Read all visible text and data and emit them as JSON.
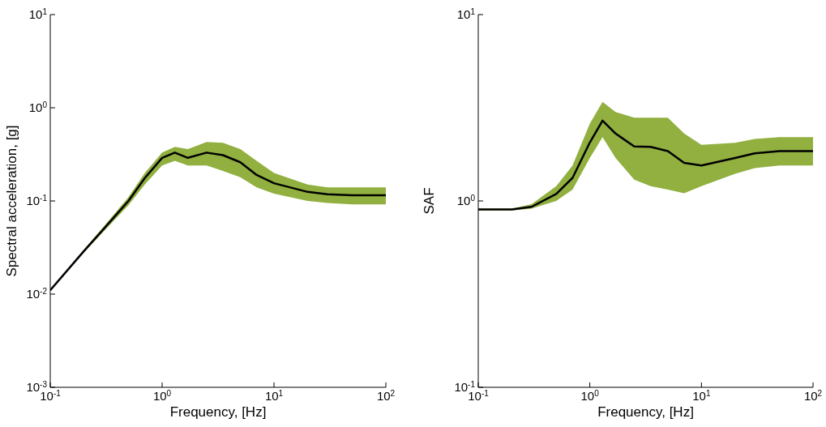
{
  "chart_data": [
    {
      "type": "line",
      "xlabel": "Frequency, [Hz]",
      "ylabel": "Spectral acceleration, [g]",
      "log": "xy",
      "xlim": [
        0.1,
        100
      ],
      "ylim": [
        0.001,
        10
      ],
      "xticks": [
        {
          "value": 0.1,
          "label": "10$^{-1}$"
        },
        {
          "value": 1,
          "label": "10$^{0}$"
        },
        {
          "value": 10,
          "label": "10$^{1}$"
        },
        {
          "value": 100,
          "label": "10$^{2}$"
        }
      ],
      "yticks": [
        {
          "value": 0.001,
          "label": "10$^{-3}$"
        },
        {
          "value": 0.01,
          "label": "10$^{-2}$"
        },
        {
          "value": 0.1,
          "label": "10$^{-1}$"
        },
        {
          "value": 1,
          "label": "10$^{0}$"
        },
        {
          "value": 10,
          "label": "10$^{1}$"
        }
      ],
      "x": [
        0.1,
        0.2,
        0.3,
        0.5,
        0.7,
        1,
        1.3,
        1.7,
        2.5,
        3.5,
        5,
        7,
        10,
        20,
        30,
        50,
        100
      ],
      "series": [
        {
          "color": "#000000",
          "values": [
            0.011,
            0.029,
            0.05,
            0.1,
            0.176,
            0.29,
            0.33,
            0.29,
            0.33,
            0.31,
            0.26,
            0.19,
            0.155,
            0.125,
            0.118,
            0.115,
            0.115
          ],
          "lower": [
            0.011,
            0.028,
            0.047,
            0.09,
            0.15,
            0.24,
            0.27,
            0.24,
            0.24,
            0.21,
            0.18,
            0.14,
            0.12,
            0.1,
            0.095,
            0.092,
            0.092
          ],
          "upper": [
            0.011,
            0.03,
            0.053,
            0.11,
            0.2,
            0.33,
            0.38,
            0.36,
            0.43,
            0.42,
            0.36,
            0.27,
            0.2,
            0.15,
            0.14,
            0.14,
            0.14
          ]
        }
      ]
    },
    {
      "type": "line",
      "xlabel": "Frequency, [Hz]",
      "ylabel": "SAF",
      "log": "xy",
      "xlim": [
        0.1,
        100
      ],
      "ylim": [
        0.1,
        10
      ],
      "xticks": [
        {
          "value": 0.1,
          "label": "10$^{-1}$"
        },
        {
          "value": 1,
          "label": "10$^{0}$"
        },
        {
          "value": 10,
          "label": "10$^{1}$"
        },
        {
          "value": 100,
          "label": "10$^{2}$"
        }
      ],
      "yticks": [
        {
          "value": 0.1,
          "label": "10$^{-1}$"
        },
        {
          "value": 1,
          "label": "10$^{0}$"
        },
        {
          "value": 10,
          "label": "10$^{1}$"
        }
      ],
      "x": [
        0.1,
        0.2,
        0.3,
        0.5,
        0.7,
        1,
        1.3,
        1.7,
        2.5,
        3.5,
        5,
        7,
        10,
        20,
        30,
        50,
        100
      ],
      "series": [
        {
          "color": "#000000",
          "values": [
            0.9,
            0.9,
            0.93,
            1.09,
            1.33,
            2.06,
            2.7,
            2.3,
            1.96,
            1.95,
            1.85,
            1.6,
            1.55,
            1.7,
            1.8,
            1.85,
            1.85
          ],
          "lower": [
            0.89,
            0.89,
            0.91,
            1.0,
            1.15,
            1.7,
            2.2,
            1.7,
            1.3,
            1.2,
            1.15,
            1.1,
            1.2,
            1.4,
            1.5,
            1.55,
            1.55
          ],
          "upper": [
            0.91,
            0.91,
            0.96,
            1.2,
            1.55,
            2.6,
            3.4,
            3.0,
            2.8,
            2.8,
            2.8,
            2.3,
            2.0,
            2.05,
            2.15,
            2.2,
            2.2
          ]
        }
      ]
    }
  ]
}
